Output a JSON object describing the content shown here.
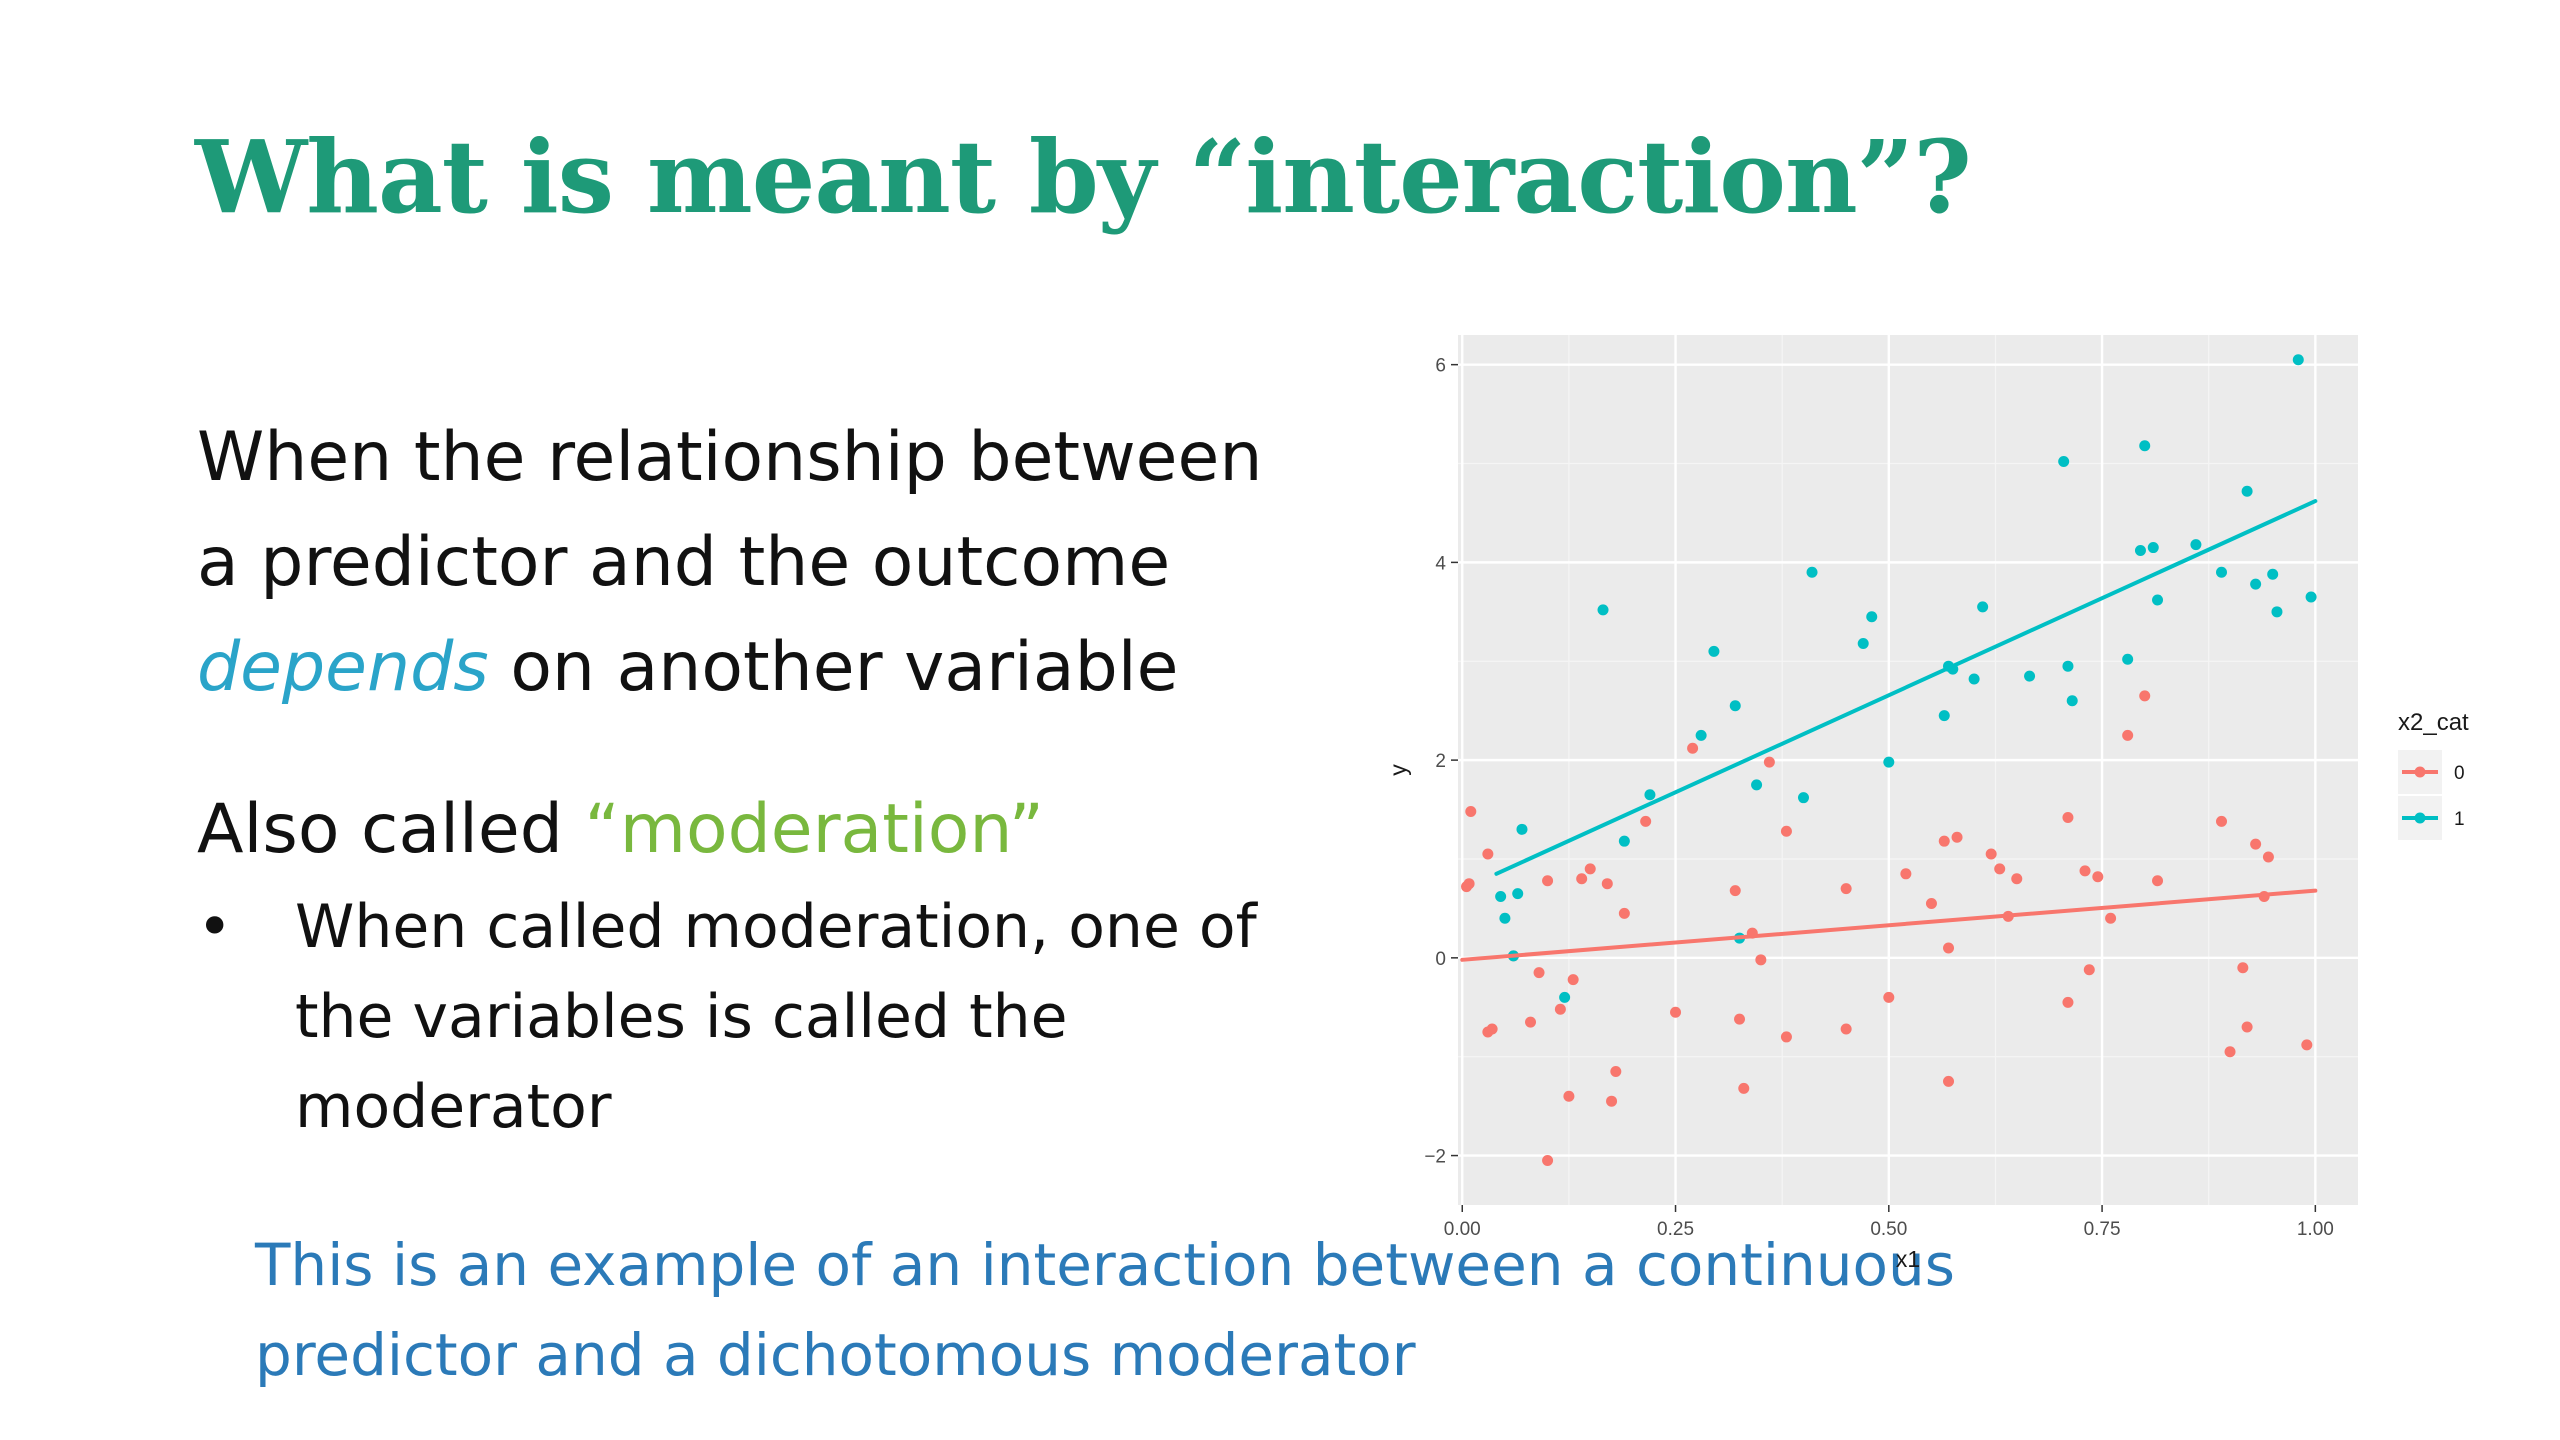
{
  "slide": {
    "title": "What is meant by “interaction”?",
    "para_line1": "When the relationship between",
    "para_line2": "a predictor and the outcome",
    "para_depends": "depends",
    "para_line3_rest": " on another variable",
    "also_prefix": "Also called ",
    "also_term": "“moderation”",
    "bullet_symbol": "•",
    "bullet_text": "When called moderation, one of the variables is called the moderator",
    "footer": "This is an example of an interaction between a continuous predictor and a dichotomous moderator"
  },
  "colors": {
    "title": "#1e9a78",
    "depends": "#2aa4c9",
    "moderation": "#79b83e",
    "footer": "#2b7ab8",
    "series0": "#f8766d",
    "series1": "#00bfc4",
    "panel": "#ebebeb"
  },
  "chart_data": {
    "type": "scatter",
    "xlabel": "x1",
    "ylabel": "y",
    "xlim": [
      -0.005,
      1.05
    ],
    "ylim": [
      -2.5,
      6.3
    ],
    "xticks": [
      0,
      0.25,
      0.5,
      0.75,
      1
    ],
    "xtick_labels": [
      "0.00",
      "0.25",
      "0.50",
      "0.75",
      "1.00"
    ],
    "yticks": [
      -2,
      0,
      2,
      4,
      6
    ],
    "ytick_labels": [
      "−2",
      "0",
      "2",
      "4",
      "6"
    ],
    "grid": true,
    "legend": {
      "title": "x2_cat",
      "position": "right",
      "labels": [
        "0",
        "1"
      ]
    },
    "series": [
      {
        "name": "0",
        "color": "#f8766d",
        "fit": [
          [
            0,
            -0.02
          ],
          [
            1,
            0.68
          ]
        ],
        "points": [
          [
            0.005,
            0.72
          ],
          [
            0.008,
            0.75
          ],
          [
            0.01,
            1.48
          ],
          [
            0.03,
            1.05
          ],
          [
            0.03,
            -0.75
          ],
          [
            0.035,
            -0.72
          ],
          [
            0.06,
            0.02
          ],
          [
            0.08,
            -0.65
          ],
          [
            0.09,
            -0.15
          ],
          [
            0.1,
            0.78
          ],
          [
            0.1,
            -2.05
          ],
          [
            0.115,
            -0.52
          ],
          [
            0.125,
            -1.4
          ],
          [
            0.13,
            -0.22
          ],
          [
            0.14,
            0.8
          ],
          [
            0.15,
            0.9
          ],
          [
            0.17,
            0.75
          ],
          [
            0.175,
            -1.45
          ],
          [
            0.18,
            -1.15
          ],
          [
            0.19,
            0.45
          ],
          [
            0.215,
            1.38
          ],
          [
            0.25,
            -0.55
          ],
          [
            0.27,
            2.12
          ],
          [
            0.32,
            0.68
          ],
          [
            0.325,
            -0.62
          ],
          [
            0.33,
            -1.32
          ],
          [
            0.34,
            0.25
          ],
          [
            0.35,
            -0.02
          ],
          [
            0.36,
            1.98
          ],
          [
            0.38,
            1.28
          ],
          [
            0.38,
            -0.8
          ],
          [
            0.45,
            0.7
          ],
          [
            0.45,
            -0.72
          ],
          [
            0.5,
            -0.4
          ],
          [
            0.52,
            0.85
          ],
          [
            0.55,
            0.55
          ],
          [
            0.565,
            1.18
          ],
          [
            0.57,
            0.1
          ],
          [
            0.57,
            -1.25
          ],
          [
            0.58,
            1.22
          ],
          [
            0.62,
            1.05
          ],
          [
            0.63,
            0.9
          ],
          [
            0.64,
            0.42
          ],
          [
            0.65,
            0.8
          ],
          [
            0.71,
            1.42
          ],
          [
            0.71,
            -0.45
          ],
          [
            0.73,
            0.88
          ],
          [
            0.735,
            -0.12
          ],
          [
            0.745,
            0.82
          ],
          [
            0.76,
            0.4
          ],
          [
            0.78,
            2.25
          ],
          [
            0.8,
            2.65
          ],
          [
            0.815,
            0.78
          ],
          [
            0.89,
            1.38
          ],
          [
            0.9,
            -0.95
          ],
          [
            0.915,
            -0.1
          ],
          [
            0.92,
            -0.7
          ],
          [
            0.93,
            1.15
          ],
          [
            0.94,
            0.62
          ],
          [
            0.945,
            1.02
          ],
          [
            0.99,
            -0.88
          ]
        ]
      },
      {
        "name": "1",
        "color": "#00bfc4",
        "fit": [
          [
            0.04,
            0.85
          ],
          [
            1,
            4.62
          ]
        ],
        "points": [
          [
            0.045,
            0.62
          ],
          [
            0.05,
            0.4
          ],
          [
            0.06,
            0.02
          ],
          [
            0.065,
            0.65
          ],
          [
            0.07,
            1.3
          ],
          [
            0.12,
            -0.4
          ],
          [
            0.165,
            3.52
          ],
          [
            0.19,
            1.18
          ],
          [
            0.22,
            1.65
          ],
          [
            0.28,
            2.25
          ],
          [
            0.295,
            3.1
          ],
          [
            0.32,
            2.55
          ],
          [
            0.325,
            0.2
          ],
          [
            0.345,
            1.75
          ],
          [
            0.4,
            1.62
          ],
          [
            0.41,
            3.9
          ],
          [
            0.47,
            3.18
          ],
          [
            0.48,
            3.45
          ],
          [
            0.5,
            1.98
          ],
          [
            0.565,
            2.45
          ],
          [
            0.57,
            2.95
          ],
          [
            0.575,
            2.92
          ],
          [
            0.6,
            2.82
          ],
          [
            0.61,
            3.55
          ],
          [
            0.665,
            2.85
          ],
          [
            0.705,
            5.02
          ],
          [
            0.71,
            2.95
          ],
          [
            0.715,
            2.6
          ],
          [
            0.78,
            3.02
          ],
          [
            0.795,
            4.12
          ],
          [
            0.8,
            5.18
          ],
          [
            0.81,
            4.15
          ],
          [
            0.815,
            3.62
          ],
          [
            0.86,
            4.18
          ],
          [
            0.89,
            3.9
          ],
          [
            0.92,
            4.72
          ],
          [
            0.93,
            3.78
          ],
          [
            0.95,
            3.88
          ],
          [
            0.955,
            3.5
          ],
          [
            0.98,
            6.05
          ],
          [
            0.995,
            3.65
          ]
        ]
      }
    ]
  }
}
